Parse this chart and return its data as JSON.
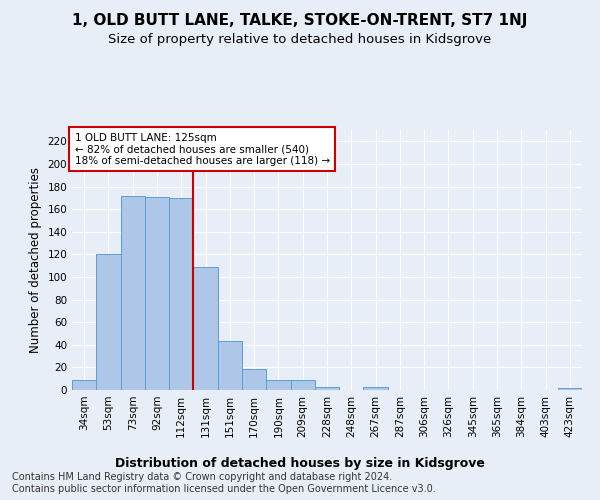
{
  "title": "1, OLD BUTT LANE, TALKE, STOKE-ON-TRENT, ST7 1NJ",
  "subtitle": "Size of property relative to detached houses in Kidsgrove",
  "xlabel_bottom": "Distribution of detached houses by size in Kidsgrove",
  "ylabel": "Number of detached properties",
  "categories": [
    "34sqm",
    "53sqm",
    "73sqm",
    "92sqm",
    "112sqm",
    "131sqm",
    "151sqm",
    "170sqm",
    "190sqm",
    "209sqm",
    "228sqm",
    "248sqm",
    "267sqm",
    "287sqm",
    "306sqm",
    "326sqm",
    "345sqm",
    "365sqm",
    "384sqm",
    "403sqm",
    "423sqm"
  ],
  "values": [
    9,
    120,
    172,
    171,
    170,
    109,
    43,
    19,
    9,
    9,
    3,
    0,
    3,
    0,
    0,
    0,
    0,
    0,
    0,
    0,
    2
  ],
  "bar_color": "#aec6e8",
  "bar_edge_color": "#5a9fd4",
  "vline_x_index": 4,
  "vline_color": "#cc0000",
  "annotation_text": "1 OLD BUTT LANE: 125sqm\n← 82% of detached houses are smaller (540)\n18% of semi-detached houses are larger (118) →",
  "annotation_box_color": "#ffffff",
  "annotation_box_edge": "#cc0000",
  "ylim": [
    0,
    230
  ],
  "yticks": [
    0,
    20,
    40,
    60,
    80,
    100,
    120,
    140,
    160,
    180,
    200,
    220
  ],
  "footer": "Contains HM Land Registry data © Crown copyright and database right 2024.\nContains public sector information licensed under the Open Government Licence v3.0.",
  "bg_color": "#e8eef8",
  "plot_bg_color": "#e8eef8",
  "grid_color": "#ffffff",
  "title_fontsize": 11,
  "subtitle_fontsize": 9.5,
  "tick_fontsize": 7.5,
  "ylabel_fontsize": 8.5,
  "footer_fontsize": 7,
  "xlabel_fontsize": 9
}
